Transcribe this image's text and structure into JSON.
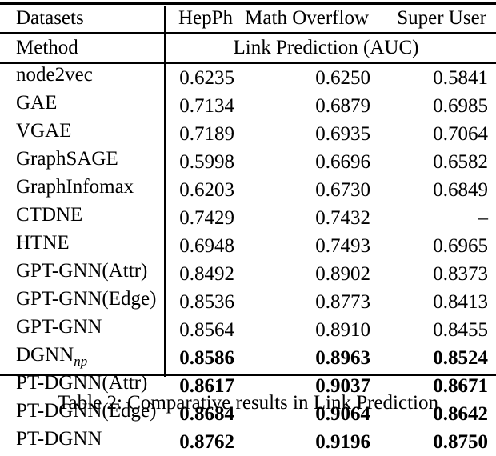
{
  "colors": {
    "text": "#000000",
    "background": "#ffffff",
    "rule": "#000000"
  },
  "table": {
    "header": {
      "datasets_label": "Datasets",
      "columns": [
        "HepPh",
        "Math Overflow",
        "Super User"
      ],
      "method_label": "Method",
      "metric_label": "Link Prediction (AUC)"
    },
    "rows": [
      {
        "method": "node2vec",
        "values": [
          "0.6235",
          "0.6250",
          "0.5841"
        ],
        "bold": false
      },
      {
        "method": "GAE",
        "values": [
          "0.7134",
          "0.6879",
          "0.6985"
        ],
        "bold": false
      },
      {
        "method": "VGAE",
        "values": [
          "0.7189",
          "0.6935",
          "0.7064"
        ],
        "bold": false
      },
      {
        "method": "GraphSAGE",
        "values": [
          "0.5998",
          "0.6696",
          "0.6582"
        ],
        "bold": false
      },
      {
        "method": "GraphInfomax",
        "values": [
          "0.6203",
          "0.6730",
          "0.6849"
        ],
        "bold": false
      },
      {
        "method": "CTDNE",
        "values": [
          "0.7429",
          "0.7432",
          "–"
        ],
        "bold": false
      },
      {
        "method": "HTNE",
        "values": [
          "0.6948",
          "0.7493",
          "0.6965"
        ],
        "bold": false
      },
      {
        "method": "GPT-GNN(Attr)",
        "values": [
          "0.8492",
          "0.8902",
          "0.8373"
        ],
        "bold": false
      },
      {
        "method": "GPT-GNN(Edge)",
        "values": [
          "0.8536",
          "0.8773",
          "0.8413"
        ],
        "bold": false
      },
      {
        "method": "GPT-GNN",
        "values": [
          "0.8564",
          "0.8910",
          "0.8455"
        ],
        "bold": false
      },
      {
        "method": "DGNN",
        "method_subscript": "np",
        "values": [
          "0.8586",
          "0.8963",
          "0.8524"
        ],
        "bold": true
      },
      {
        "method": "PT-DGNN(Attr)",
        "values": [
          "0.8617",
          "0.9037",
          "0.8671"
        ],
        "bold": true
      },
      {
        "method": "PT-DGNN(Edge)",
        "values": [
          "0.8684",
          "0.9064",
          "0.8642"
        ],
        "bold": true
      },
      {
        "method": "PT-DGNN",
        "values": [
          "0.8762",
          "0.9196",
          "0.8750"
        ],
        "bold": true
      }
    ],
    "caption": "Table 2: Comparative results in Link Prediction"
  }
}
